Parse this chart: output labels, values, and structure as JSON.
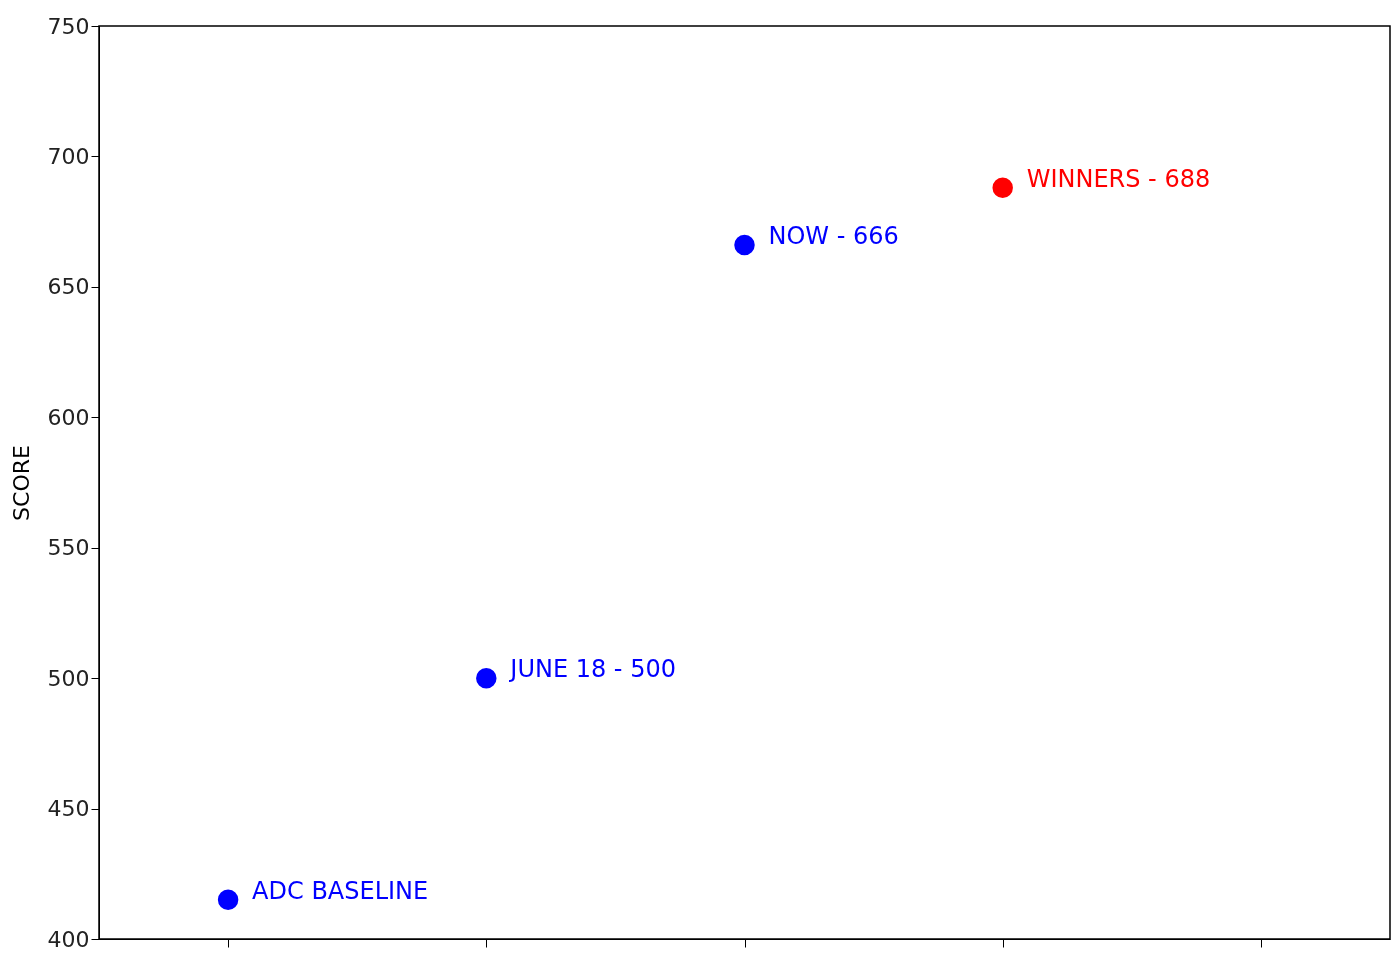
{
  "chart_data": {
    "type": "scatter",
    "ylabel": "SCORE",
    "categories": [
      null,
      null,
      null,
      null,
      null
    ],
    "values": [
      415,
      500,
      666,
      688,
      null
    ],
    "colors": [
      "#0000ff",
      "#0000ff",
      "#0000ff",
      "#ff0000",
      "#0000ff"
    ],
    "annotations": [
      "ADC BASELINE",
      "JUNE 18 - 500",
      "NOW - 666",
      "WINNERS - 688"
    ],
    "ylim": [
      400,
      750
    ],
    "yticks": [
      400,
      450,
      500,
      550,
      600,
      650,
      700,
      750
    ],
    "tick_labels": "y",
    "grid": false,
    "marker": "circle"
  }
}
